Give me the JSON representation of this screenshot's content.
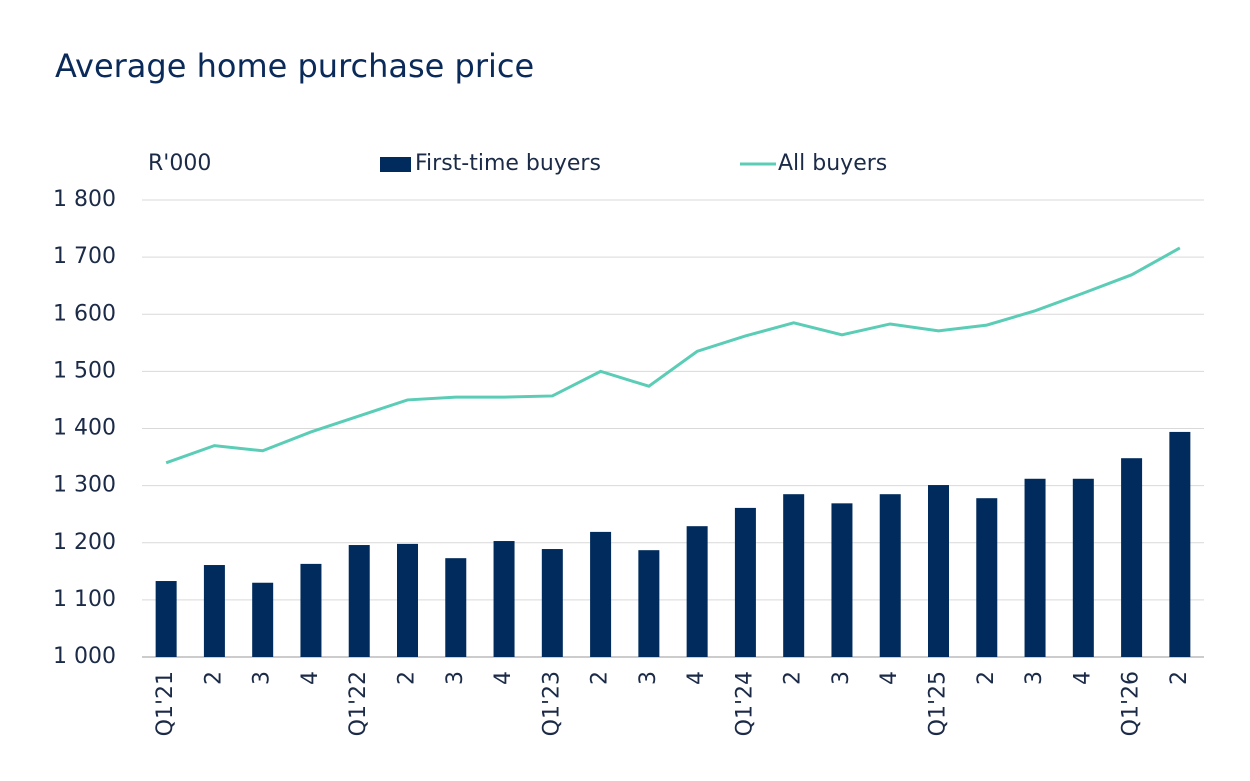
{
  "chart_data": {
    "type": "bar-line",
    "title": "Average home purchase price",
    "y_label": "R'000",
    "categories": [
      "Q1'21",
      "2",
      "3",
      "4",
      "Q1'22",
      "2",
      "3",
      "4",
      "Q1'23",
      "2",
      "3",
      "4",
      "Q1'24",
      "2",
      "3",
      "4",
      "Q1'25",
      "2",
      "3",
      "4",
      "Q1'26",
      "2"
    ],
    "series": [
      {
        "name": "First-time buyers",
        "type": "bar",
        "color": "#002b5c",
        "values": [
          1133,
          1161,
          1130,
          1163,
          1196,
          1198,
          1173,
          1203,
          1189,
          1219,
          1187,
          1229,
          1261,
          1285,
          1269,
          1285,
          1301,
          1278,
          1312,
          1312,
          1348,
          1394
        ]
      },
      {
        "name": "All buyers",
        "type": "line",
        "color": "#5bcdb6",
        "values": [
          1340,
          1370,
          1361,
          1394,
          1422,
          1450,
          1455,
          1455,
          1457,
          1500,
          1474,
          1535,
          1562,
          1585,
          1564,
          1583,
          1571,
          1581,
          1606,
          1637,
          1669,
          1716
        ]
      }
    ],
    "ylim": [
      1000,
      1800
    ],
    "yticks": [
      {
        "value": 1000,
        "label": "1 000"
      },
      {
        "value": 1100,
        "label": "1 100"
      },
      {
        "value": 1200,
        "label": "1 200"
      },
      {
        "value": 1300,
        "label": "1 300"
      },
      {
        "value": 1400,
        "label": "1 400"
      },
      {
        "value": 1500,
        "label": "1 500"
      },
      {
        "value": 1600,
        "label": "1 600"
      },
      {
        "value": 1700,
        "label": "1 700"
      },
      {
        "value": 1800,
        "label": "1 800"
      }
    ],
    "grid": true
  }
}
